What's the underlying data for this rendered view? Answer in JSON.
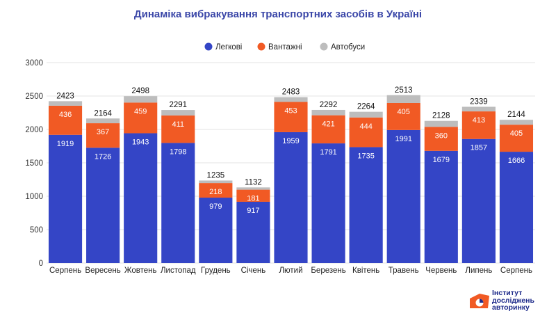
{
  "chart_data": {
    "type": "bar",
    "stacked": true,
    "title": "Динаміка вибракування транспортних засобів в Україні",
    "categories": [
      "Серпень",
      "Вересень",
      "Жовтень",
      "Листопад",
      "Грудень",
      "Січень",
      "Лютий",
      "Березень",
      "Квітень",
      "Травень",
      "Червень",
      "Липень",
      "Серпень"
    ],
    "series": [
      {
        "name": "Легкові",
        "color": "#3445c6",
        "values": [
          1919,
          1726,
          1943,
          1798,
          979,
          917,
          1959,
          1791,
          1735,
          1991,
          1679,
          1857,
          1666
        ]
      },
      {
        "name": "Вантажні",
        "color": "#f15a24",
        "values": [
          436,
          367,
          459,
          411,
          218,
          181,
          453,
          421,
          444,
          405,
          360,
          413,
          405
        ]
      },
      {
        "name": "Автобуси",
        "color": "#bdbdbd",
        "values": [
          68,
          71,
          96,
          82,
          38,
          34,
          71,
          80,
          85,
          117,
          89,
          69,
          73
        ]
      }
    ],
    "totals": [
      2423,
      2164,
      2498,
      2291,
      1235,
      1132,
      2483,
      2292,
      2264,
      2513,
      2128,
      2339,
      2144
    ],
    "ylim": [
      0,
      3000
    ],
    "yticks": [
      0,
      500,
      1000,
      1500,
      2000,
      2500,
      3000
    ],
    "legend_position": "top-right",
    "grid": true
  },
  "logo": {
    "lines": [
      "Інститут",
      "досліджень",
      "авторинку"
    ],
    "colors": {
      "orange": "#f15a24",
      "navy": "#1d2a8a"
    }
  }
}
